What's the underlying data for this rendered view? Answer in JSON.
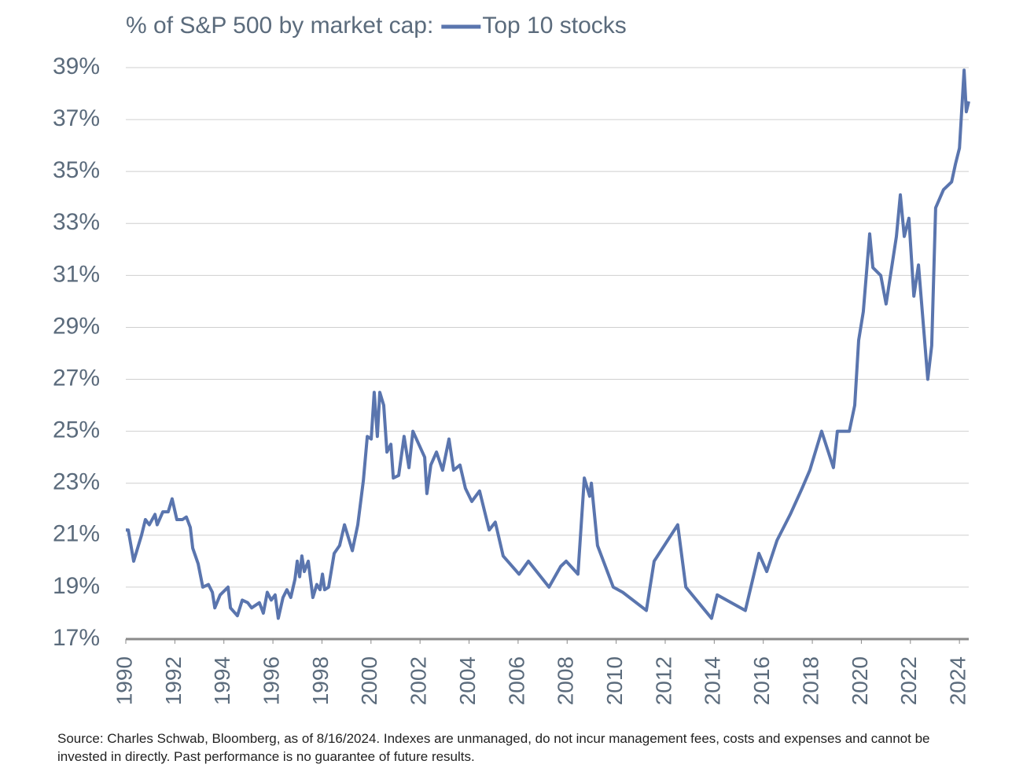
{
  "chart_data": {
    "type": "line",
    "title": "% of S&P 500 by market cap:",
    "note": "Source: Charles Schwab, Bloomberg, as of 8/16/2024. Indexes are unmanaged, do not incur management fees, costs and expenses and cannot be invested in directly. Past performance is no guarantee of future results.",
    "x": [
      1990.0,
      1990.1,
      1990.32,
      1990.64,
      1990.8,
      1990.96,
      1991.19,
      1991.28,
      1991.51,
      1991.73,
      1991.89,
      1992.08,
      1992.31,
      1992.47,
      1992.63,
      1992.73,
      1992.95,
      1993.14,
      1993.37,
      1993.53,
      1993.63,
      1993.85,
      1994.17,
      1994.27,
      1994.55,
      1994.75,
      1994.97,
      1995.13,
      1995.45,
      1995.61,
      1995.77,
      1995.93,
      1996.09,
      1996.22,
      1996.41,
      1996.57,
      1996.73,
      1996.9,
      1996.99,
      1997.09,
      1997.18,
      1997.28,
      1997.44,
      1997.63,
      1997.79,
      1997.92,
      1998.02,
      1998.11,
      1998.27,
      1998.5,
      1998.72,
      1998.92,
      1999.24,
      1999.46,
      1999.69,
      1999.85,
      2000.01,
      2000.13,
      2000.26,
      2000.36,
      2000.52,
      2000.65,
      2000.81,
      2000.91,
      2001.13,
      2001.35,
      2001.55,
      2001.71,
      2002.19,
      2002.28,
      2002.44,
      2002.67,
      2002.92,
      2003.18,
      2003.37,
      2003.63,
      2003.85,
      2004.11,
      2004.43,
      2004.82,
      2005.07,
      2005.39,
      2006.04,
      2006.42,
      2007.26,
      2007.74,
      2007.96,
      2008.44,
      2008.7,
      2008.92,
      2008.99,
      2009.24,
      2009.88,
      2010.27,
      2011.23,
      2011.55,
      2012.51,
      2012.84,
      2013.89,
      2014.12,
      2015.27,
      2015.82,
      2016.14,
      2016.56,
      2017.1,
      2017.58,
      2017.9,
      2018.38,
      2018.86,
      2019.02,
      2019.51,
      2019.73,
      2019.89,
      2020.08,
      2020.34,
      2020.47,
      2020.79,
      2021.01,
      2021.43,
      2021.59,
      2021.75,
      2021.94,
      2022.14,
      2022.33,
      2022.71,
      2022.87,
      2023.03,
      2023.35,
      2023.68,
      2023.84,
      2024.0,
      2024.19,
      2024.28,
      2024.38
    ],
    "series": [
      {
        "name": "Top 10 stocks",
        "color": "#5a75ae",
        "values": [
          21.2,
          21.2,
          20.0,
          21.0,
          21.6,
          21.4,
          21.8,
          21.4,
          21.9,
          21.9,
          22.4,
          21.6,
          21.6,
          21.7,
          21.3,
          20.5,
          19.9,
          19.0,
          19.1,
          18.8,
          18.2,
          18.7,
          19.0,
          18.2,
          17.9,
          18.5,
          18.4,
          18.2,
          18.4,
          18.0,
          18.8,
          18.5,
          18.7,
          17.8,
          18.6,
          18.9,
          18.6,
          19.3,
          20.0,
          19.4,
          20.2,
          19.6,
          20.0,
          18.6,
          19.1,
          18.9,
          19.5,
          18.9,
          19.0,
          20.3,
          20.6,
          21.4,
          20.4,
          21.4,
          23.1,
          24.8,
          24.7,
          26.5,
          24.8,
          26.5,
          26.0,
          24.2,
          24.5,
          23.2,
          23.3,
          24.8,
          23.6,
          25.0,
          24.0,
          22.6,
          23.7,
          24.2,
          23.5,
          24.7,
          23.5,
          23.7,
          22.8,
          22.3,
          22.7,
          21.2,
          21.5,
          20.2,
          19.5,
          20.0,
          19.0,
          19.8,
          20.0,
          19.5,
          23.2,
          22.5,
          23.0,
          20.6,
          19.0,
          18.8,
          18.1,
          20.0,
          21.4,
          19.0,
          17.8,
          18.7,
          18.1,
          20.3,
          19.6,
          20.8,
          21.8,
          22.8,
          23.5,
          25.0,
          23.6,
          25.0,
          25.0,
          26.0,
          28.5,
          29.6,
          32.6,
          31.3,
          31.0,
          29.9,
          32.5,
          34.1,
          32.5,
          33.2,
          30.2,
          31.4,
          27.0,
          28.3,
          33.6,
          34.3,
          34.6,
          35.3,
          35.9,
          38.9,
          37.3,
          37.7
        ]
      }
    ],
    "xlim": [
      1990,
      2024.38
    ],
    "xticks": [
      1990,
      1992,
      1994,
      1996,
      1998,
      2000,
      2002,
      2004,
      2006,
      2008,
      2010,
      2012,
      2014,
      2016,
      2018,
      2020,
      2022,
      2024
    ],
    "ylim": [
      17,
      39
    ],
    "yticks": [
      {
        "value": 17,
        "label": "17%"
      },
      {
        "value": 19,
        "label": "19%"
      },
      {
        "value": 21,
        "label": "21%"
      },
      {
        "value": 23,
        "label": "23%"
      },
      {
        "value": 25,
        "label": "25%"
      },
      {
        "value": 27,
        "label": "27%"
      },
      {
        "value": 29,
        "label": "29%"
      },
      {
        "value": 31,
        "label": "31%"
      },
      {
        "value": 33,
        "label": "33%"
      },
      {
        "value": 35,
        "label": "35%"
      },
      {
        "value": 37,
        "label": "37%"
      },
      {
        "value": 39,
        "label": "39%"
      }
    ],
    "grid": true
  }
}
